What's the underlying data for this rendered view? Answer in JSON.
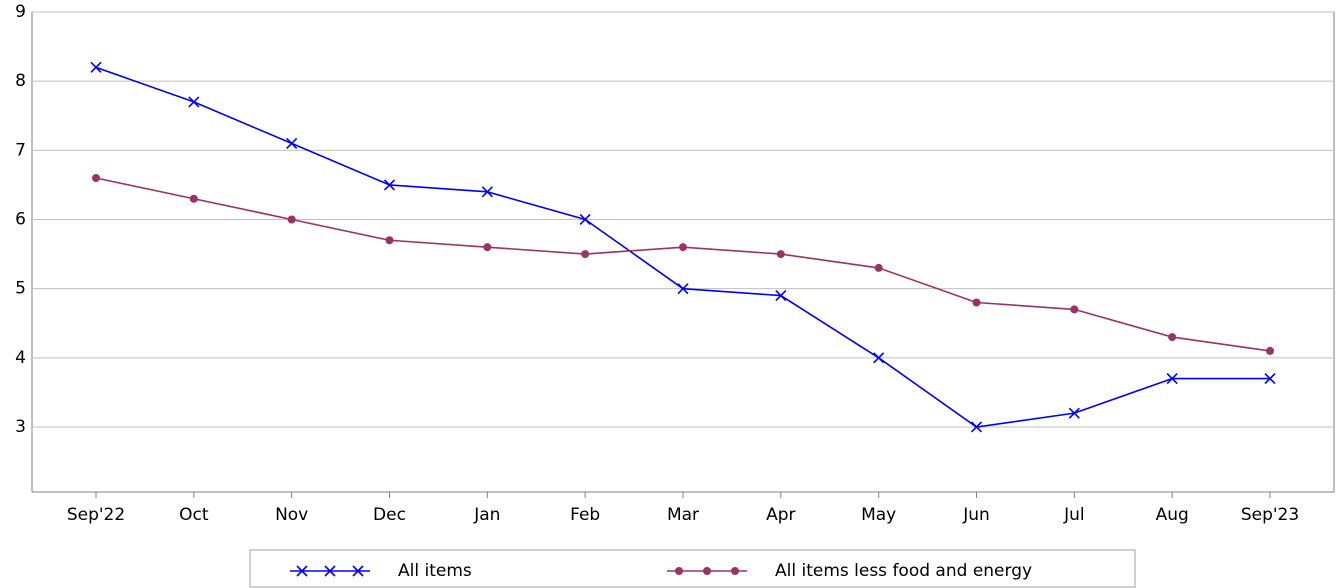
{
  "chart_data": {
    "type": "line",
    "categories": [
      "Sep'22",
      "Oct",
      "Nov",
      "Dec",
      "Jan",
      "Feb",
      "Mar",
      "Apr",
      "May",
      "Jun",
      "Jul",
      "Aug",
      "Sep'23"
    ],
    "series": [
      {
        "name": "All items",
        "color": "#0000ff",
        "marker": "x",
        "values": [
          8.2,
          7.7,
          7.1,
          6.5,
          6.4,
          6.0,
          5.0,
          4.9,
          4.0,
          3.0,
          3.2,
          3.7,
          3.7
        ]
      },
      {
        "name": "All items less food and energy",
        "color": "#993366",
        "marker": "circle",
        "values": [
          6.6,
          6.3,
          6.0,
          5.7,
          5.6,
          5.5,
          5.6,
          5.5,
          5.3,
          4.8,
          4.7,
          4.3,
          4.1
        ]
      }
    ],
    "ylim": [
      2.06,
      9
    ],
    "yticks": [
      3,
      4,
      5,
      6,
      7,
      8,
      9
    ],
    "grid": true,
    "legend": "bottom"
  }
}
